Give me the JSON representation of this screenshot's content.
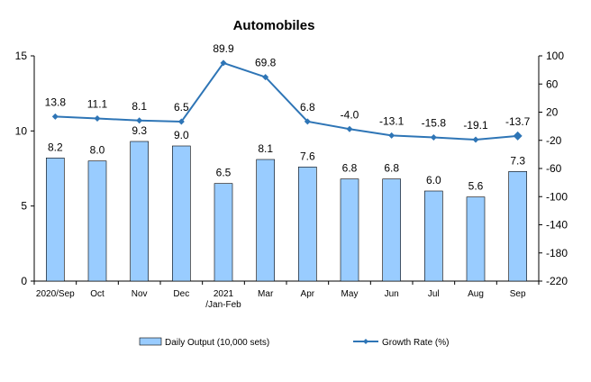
{
  "chart_data": {
    "type": "bar+line",
    "title": "Automobiles",
    "categories": [
      "2020/Sep",
      "Oct",
      "Nov",
      "Dec",
      "2021/Jan-Feb",
      "Mar",
      "Apr",
      "May",
      "Jun",
      "Jul",
      "Aug",
      "Sep"
    ],
    "category_lines": [
      [
        "2020/Sep"
      ],
      [
        "Oct"
      ],
      [
        "Nov"
      ],
      [
        "Dec"
      ],
      [
        "2021",
        "/Jan-Feb"
      ],
      [
        "Mar"
      ],
      [
        "Apr"
      ],
      [
        "May"
      ],
      [
        "Jun"
      ],
      [
        "Jul"
      ],
      [
        "Aug"
      ],
      [
        "Sep"
      ]
    ],
    "series": [
      {
        "name": "Daily Output (10,000 sets)",
        "type": "bar",
        "axis": "left",
        "values": [
          8.2,
          8.0,
          9.3,
          9.0,
          6.5,
          8.1,
          7.6,
          6.8,
          6.8,
          6.0,
          5.6,
          7.3
        ],
        "labels": [
          "8.2",
          "8.0",
          "9.3",
          "9.0",
          "6.5",
          "8.1",
          "7.6",
          "6.8",
          "6.8",
          "6.0",
          "5.6",
          "7.3"
        ],
        "color": "#99CCFF",
        "stroke": "#000000"
      },
      {
        "name": "Growth Rate (%)",
        "type": "line",
        "axis": "right",
        "values": [
          13.8,
          11.1,
          8.1,
          6.5,
          89.9,
          69.8,
          6.8,
          -4.0,
          -13.1,
          -15.8,
          -19.1,
          -13.7
        ],
        "labels": [
          "13.8",
          "11.1",
          "8.1",
          "6.5",
          "89.9",
          "69.8",
          "6.8",
          "-4.0",
          "-13.1",
          "-15.8",
          "-19.1",
          "-13.7"
        ],
        "color": "#2E75B6"
      }
    ],
    "y_left": {
      "min": 0,
      "max": 15,
      "ticks": [
        "0",
        "5",
        "10",
        "15"
      ],
      "tick_values": [
        0,
        5,
        10,
        15
      ]
    },
    "y_right": {
      "min": -220,
      "max": 100,
      "ticks": [
        "100",
        "60",
        "20",
        "-20",
        "-60",
        "-100",
        "-140",
        "-180",
        "-220"
      ],
      "tick_values": [
        100,
        60,
        20,
        -20,
        -60,
        -100,
        -140,
        -180,
        -220
      ]
    },
    "grid": false,
    "legend": "bottom"
  }
}
